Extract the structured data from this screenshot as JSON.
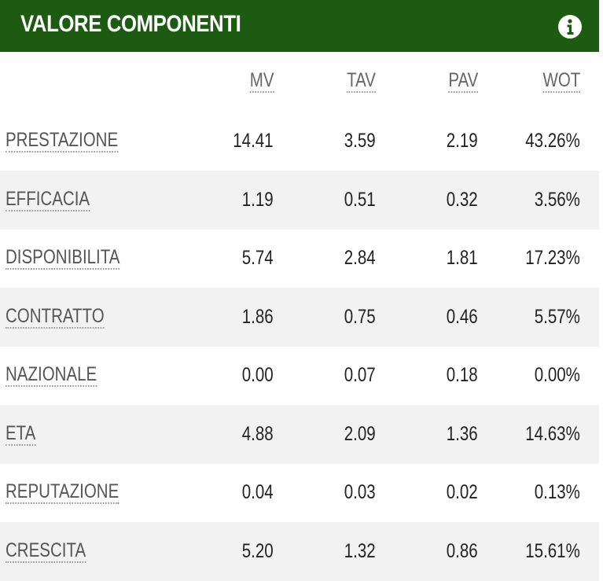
{
  "header": {
    "title": "VALORE COMPONENTI"
  },
  "table": {
    "columns": [
      "MV",
      "TAV",
      "PAV",
      "WOT"
    ],
    "rows": [
      {
        "label": "PRESTAZIONE",
        "cells": [
          "14.41",
          "3.59",
          "2.19",
          "43.26%"
        ]
      },
      {
        "label": "EFFICACIA",
        "cells": [
          "1.19",
          "0.51",
          "0.32",
          "3.56%"
        ]
      },
      {
        "label": "DISPONIBILITA",
        "cells": [
          "5.74",
          "2.84",
          "1.81",
          "17.23%"
        ]
      },
      {
        "label": "CONTRATTO",
        "cells": [
          "1.86",
          "0.75",
          "0.46",
          "5.57%"
        ]
      },
      {
        "label": "NAZIONALE",
        "cells": [
          "0.00",
          "0.07",
          "0.18",
          "0.00%"
        ]
      },
      {
        "label": "ETA",
        "cells": [
          "4.88",
          "2.09",
          "1.36",
          "14.63%"
        ]
      },
      {
        "label": "REPUTAZIONE",
        "cells": [
          "0.04",
          "0.03",
          "0.02",
          "0.13%"
        ]
      },
      {
        "label": "CRESCITA",
        "cells": [
          "5.20",
          "1.32",
          "0.86",
          "15.61%"
        ]
      }
    ]
  }
}
